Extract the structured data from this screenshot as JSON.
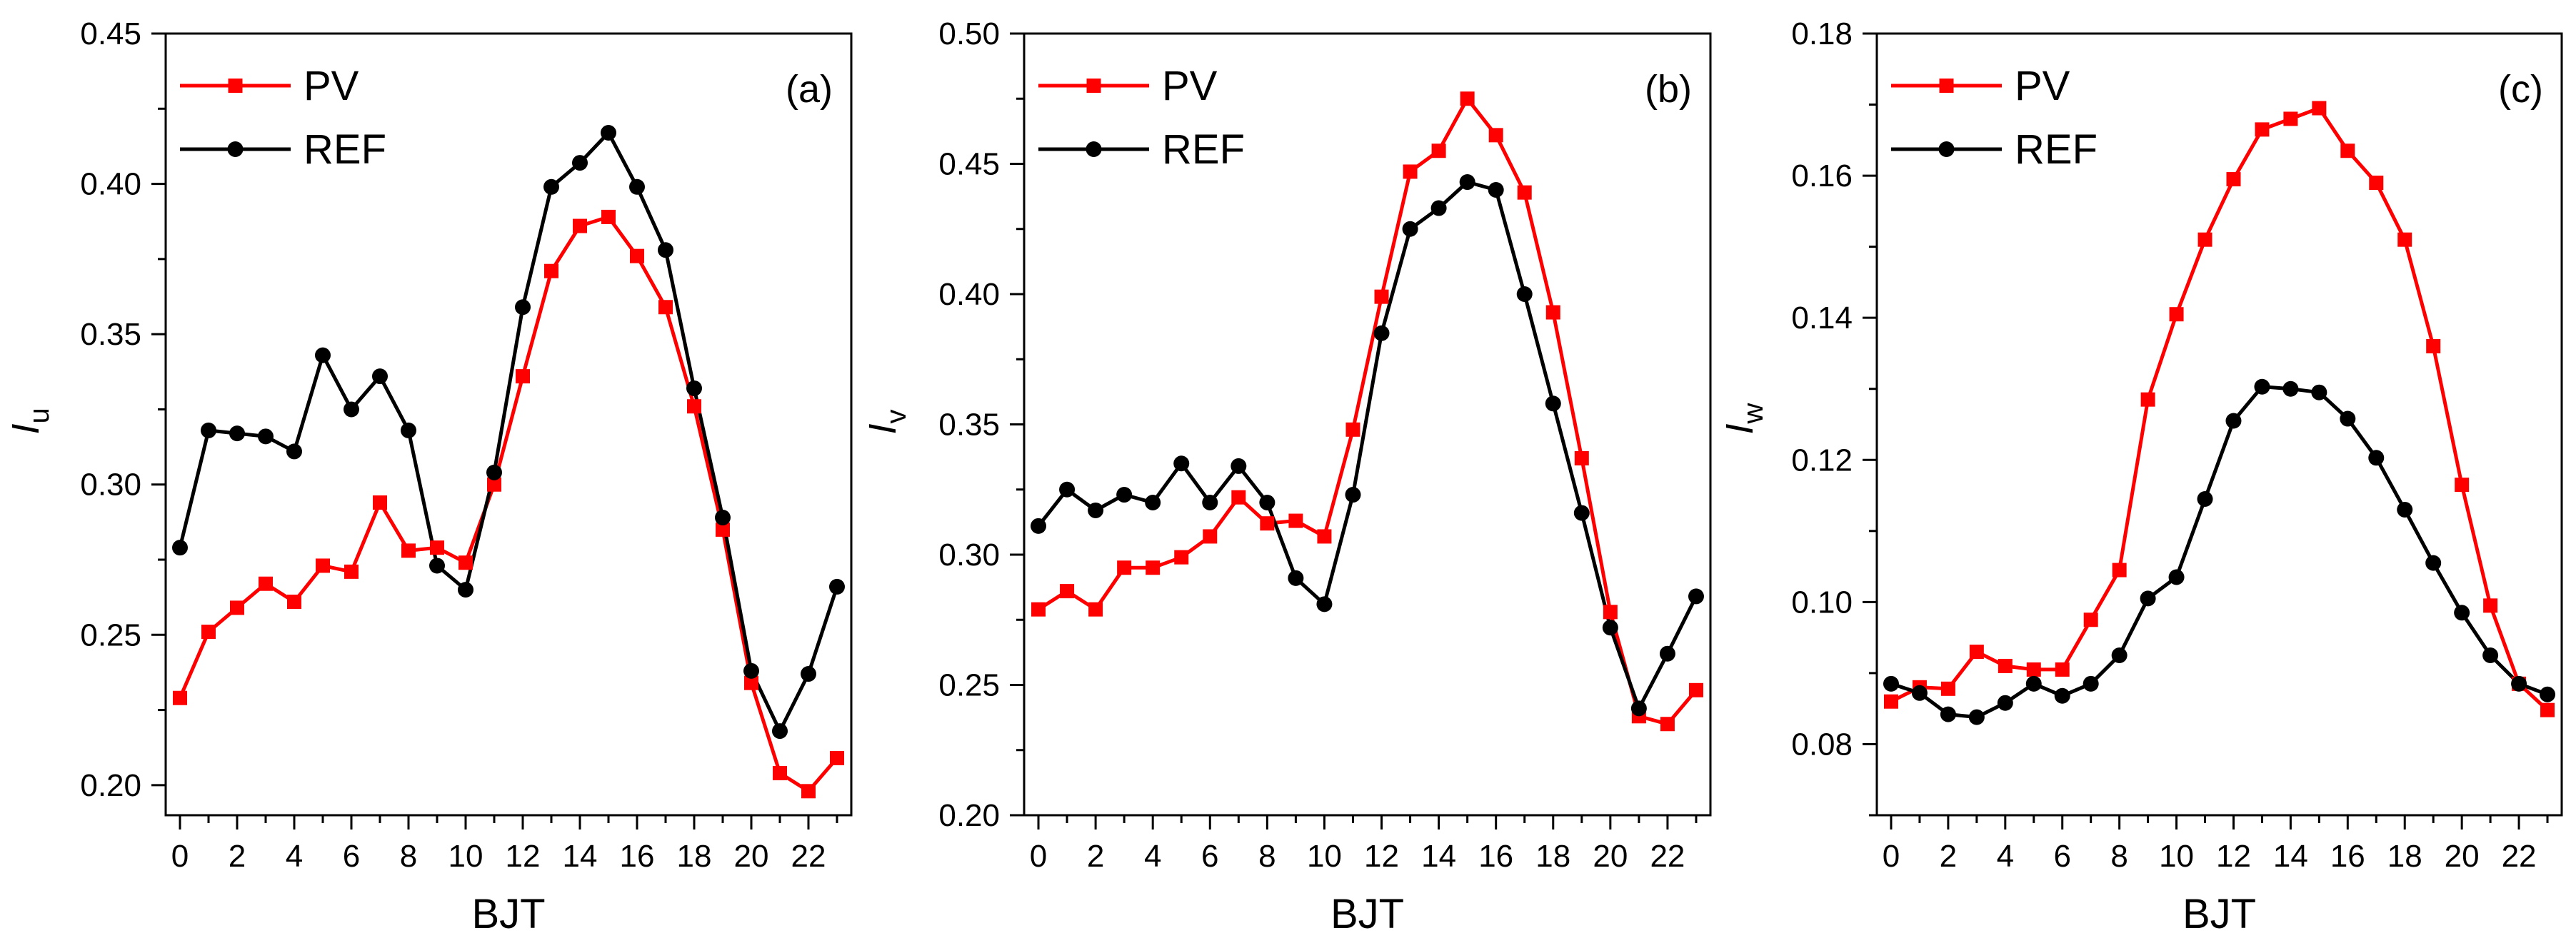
{
  "chart_data": [
    {
      "type": "line",
      "panel_label": "(a)",
      "xlabel": "BJT",
      "ylabel_main": "I",
      "ylabel_sub": "u",
      "xlim": [
        -0.5,
        23.5
      ],
      "ylim": [
        0.19,
        0.45
      ],
      "xticks": [
        0,
        2,
        4,
        6,
        8,
        10,
        12,
        14,
        16,
        18,
        20,
        22
      ],
      "xtick_labels": [
        "0",
        "2",
        "4",
        "6",
        "8",
        "10",
        "12",
        "14",
        "16",
        "18",
        "20",
        "22"
      ],
      "yticks": [
        0.2,
        0.25,
        0.3,
        0.35,
        0.4,
        0.45
      ],
      "ytick_labels": [
        "0.20",
        "0.25",
        "0.30",
        "0.35",
        "0.40",
        "0.45"
      ],
      "x": [
        0,
        1,
        2,
        3,
        4,
        5,
        6,
        7,
        8,
        9,
        10,
        11,
        12,
        13,
        14,
        15,
        16,
        17,
        18,
        19,
        20,
        21,
        22,
        23
      ],
      "series": [
        {
          "name": "PV",
          "color": "#ff0000",
          "marker": "square",
          "values": [
            0.229,
            0.251,
            0.259,
            0.267,
            0.261,
            0.273,
            0.271,
            0.294,
            0.278,
            0.279,
            0.274,
            0.3,
            0.336,
            0.371,
            0.386,
            0.389,
            0.376,
            0.359,
            0.326,
            0.285,
            0.234,
            0.204,
            0.198,
            0.209
          ]
        },
        {
          "name": "REF",
          "color": "#000000",
          "marker": "circle",
          "values": [
            0.279,
            0.318,
            0.317,
            0.316,
            0.311,
            0.343,
            0.325,
            0.336,
            0.318,
            0.273,
            0.265,
            0.304,
            0.359,
            0.399,
            0.407,
            0.417,
            0.399,
            0.378,
            0.332,
            0.289,
            0.238,
            0.218,
            0.237,
            0.266
          ]
        }
      ]
    },
    {
      "type": "line",
      "panel_label": "(b)",
      "xlabel": "BJT",
      "ylabel_main": "I",
      "ylabel_sub": "v",
      "xlim": [
        -0.5,
        23.5
      ],
      "ylim": [
        0.2,
        0.5
      ],
      "xticks": [
        0,
        2,
        4,
        6,
        8,
        10,
        12,
        14,
        16,
        18,
        20,
        22
      ],
      "xtick_labels": [
        "0",
        "2",
        "4",
        "6",
        "8",
        "10",
        "12",
        "14",
        "16",
        "18",
        "20",
        "22"
      ],
      "yticks": [
        0.2,
        0.25,
        0.3,
        0.35,
        0.4,
        0.45,
        0.5
      ],
      "ytick_labels": [
        "0.20",
        "0.25",
        "0.30",
        "0.35",
        "0.40",
        "0.45",
        "0.50"
      ],
      "x": [
        0,
        1,
        2,
        3,
        4,
        5,
        6,
        7,
        8,
        9,
        10,
        11,
        12,
        13,
        14,
        15,
        16,
        17,
        18,
        19,
        20,
        21,
        22,
        23
      ],
      "series": [
        {
          "name": "PV",
          "color": "#ff0000",
          "marker": "square",
          "values": [
            0.279,
            0.286,
            0.279,
            0.295,
            0.295,
            0.299,
            0.307,
            0.322,
            0.312,
            0.313,
            0.307,
            0.348,
            0.399,
            0.447,
            0.455,
            0.475,
            0.461,
            0.439,
            0.393,
            0.337,
            0.278,
            0.238,
            0.235,
            0.248
          ]
        },
        {
          "name": "REF",
          "color": "#000000",
          "marker": "circle",
          "values": [
            0.311,
            0.325,
            0.317,
            0.323,
            0.32,
            0.335,
            0.32,
            0.334,
            0.32,
            0.291,
            0.281,
            0.323,
            0.385,
            0.425,
            0.433,
            0.443,
            0.44,
            0.4,
            0.358,
            0.316,
            0.272,
            0.241,
            0.262,
            0.284
          ]
        }
      ]
    },
    {
      "type": "line",
      "panel_label": "(c)",
      "xlabel": "BJT",
      "ylabel_main": "I",
      "ylabel_sub": "w",
      "xlim": [
        -0.5,
        23.5
      ],
      "ylim": [
        0.07,
        0.18
      ],
      "xticks": [
        0,
        2,
        4,
        6,
        8,
        10,
        12,
        14,
        16,
        18,
        20,
        22
      ],
      "xtick_labels": [
        "0",
        "2",
        "4",
        "6",
        "8",
        "10",
        "12",
        "14",
        "16",
        "18",
        "20",
        "22"
      ],
      "yticks": [
        0.08,
        0.1,
        0.12,
        0.14,
        0.16,
        0.18
      ],
      "ytick_labels": [
        "0.08",
        "0.10",
        "0.12",
        "0.14",
        "0.16",
        "0.18"
      ],
      "x": [
        0,
        1,
        2,
        3,
        4,
        5,
        6,
        7,
        8,
        9,
        10,
        11,
        12,
        13,
        14,
        15,
        16,
        17,
        18,
        19,
        20,
        21,
        22,
        23
      ],
      "series": [
        {
          "name": "PV",
          "color": "#ff0000",
          "marker": "square",
          "values": [
            0.086,
            0.088,
            0.0878,
            0.093,
            0.091,
            0.0905,
            0.0905,
            0.0975,
            0.1045,
            0.1285,
            0.1405,
            0.151,
            0.1595,
            0.1665,
            0.168,
            0.1695,
            0.1635,
            0.159,
            0.151,
            0.136,
            0.1165,
            0.0995,
            0.0885,
            0.0848
          ]
        },
        {
          "name": "REF",
          "color": "#000000",
          "marker": "circle",
          "values": [
            0.0885,
            0.0872,
            0.0842,
            0.0838,
            0.0858,
            0.0885,
            0.0868,
            0.0885,
            0.0925,
            0.1005,
            0.1035,
            0.1145,
            0.1255,
            0.1303,
            0.13,
            0.1295,
            0.1258,
            0.1203,
            0.113,
            0.1055,
            0.0985,
            0.0925,
            0.0885,
            0.087
          ]
        }
      ]
    }
  ]
}
